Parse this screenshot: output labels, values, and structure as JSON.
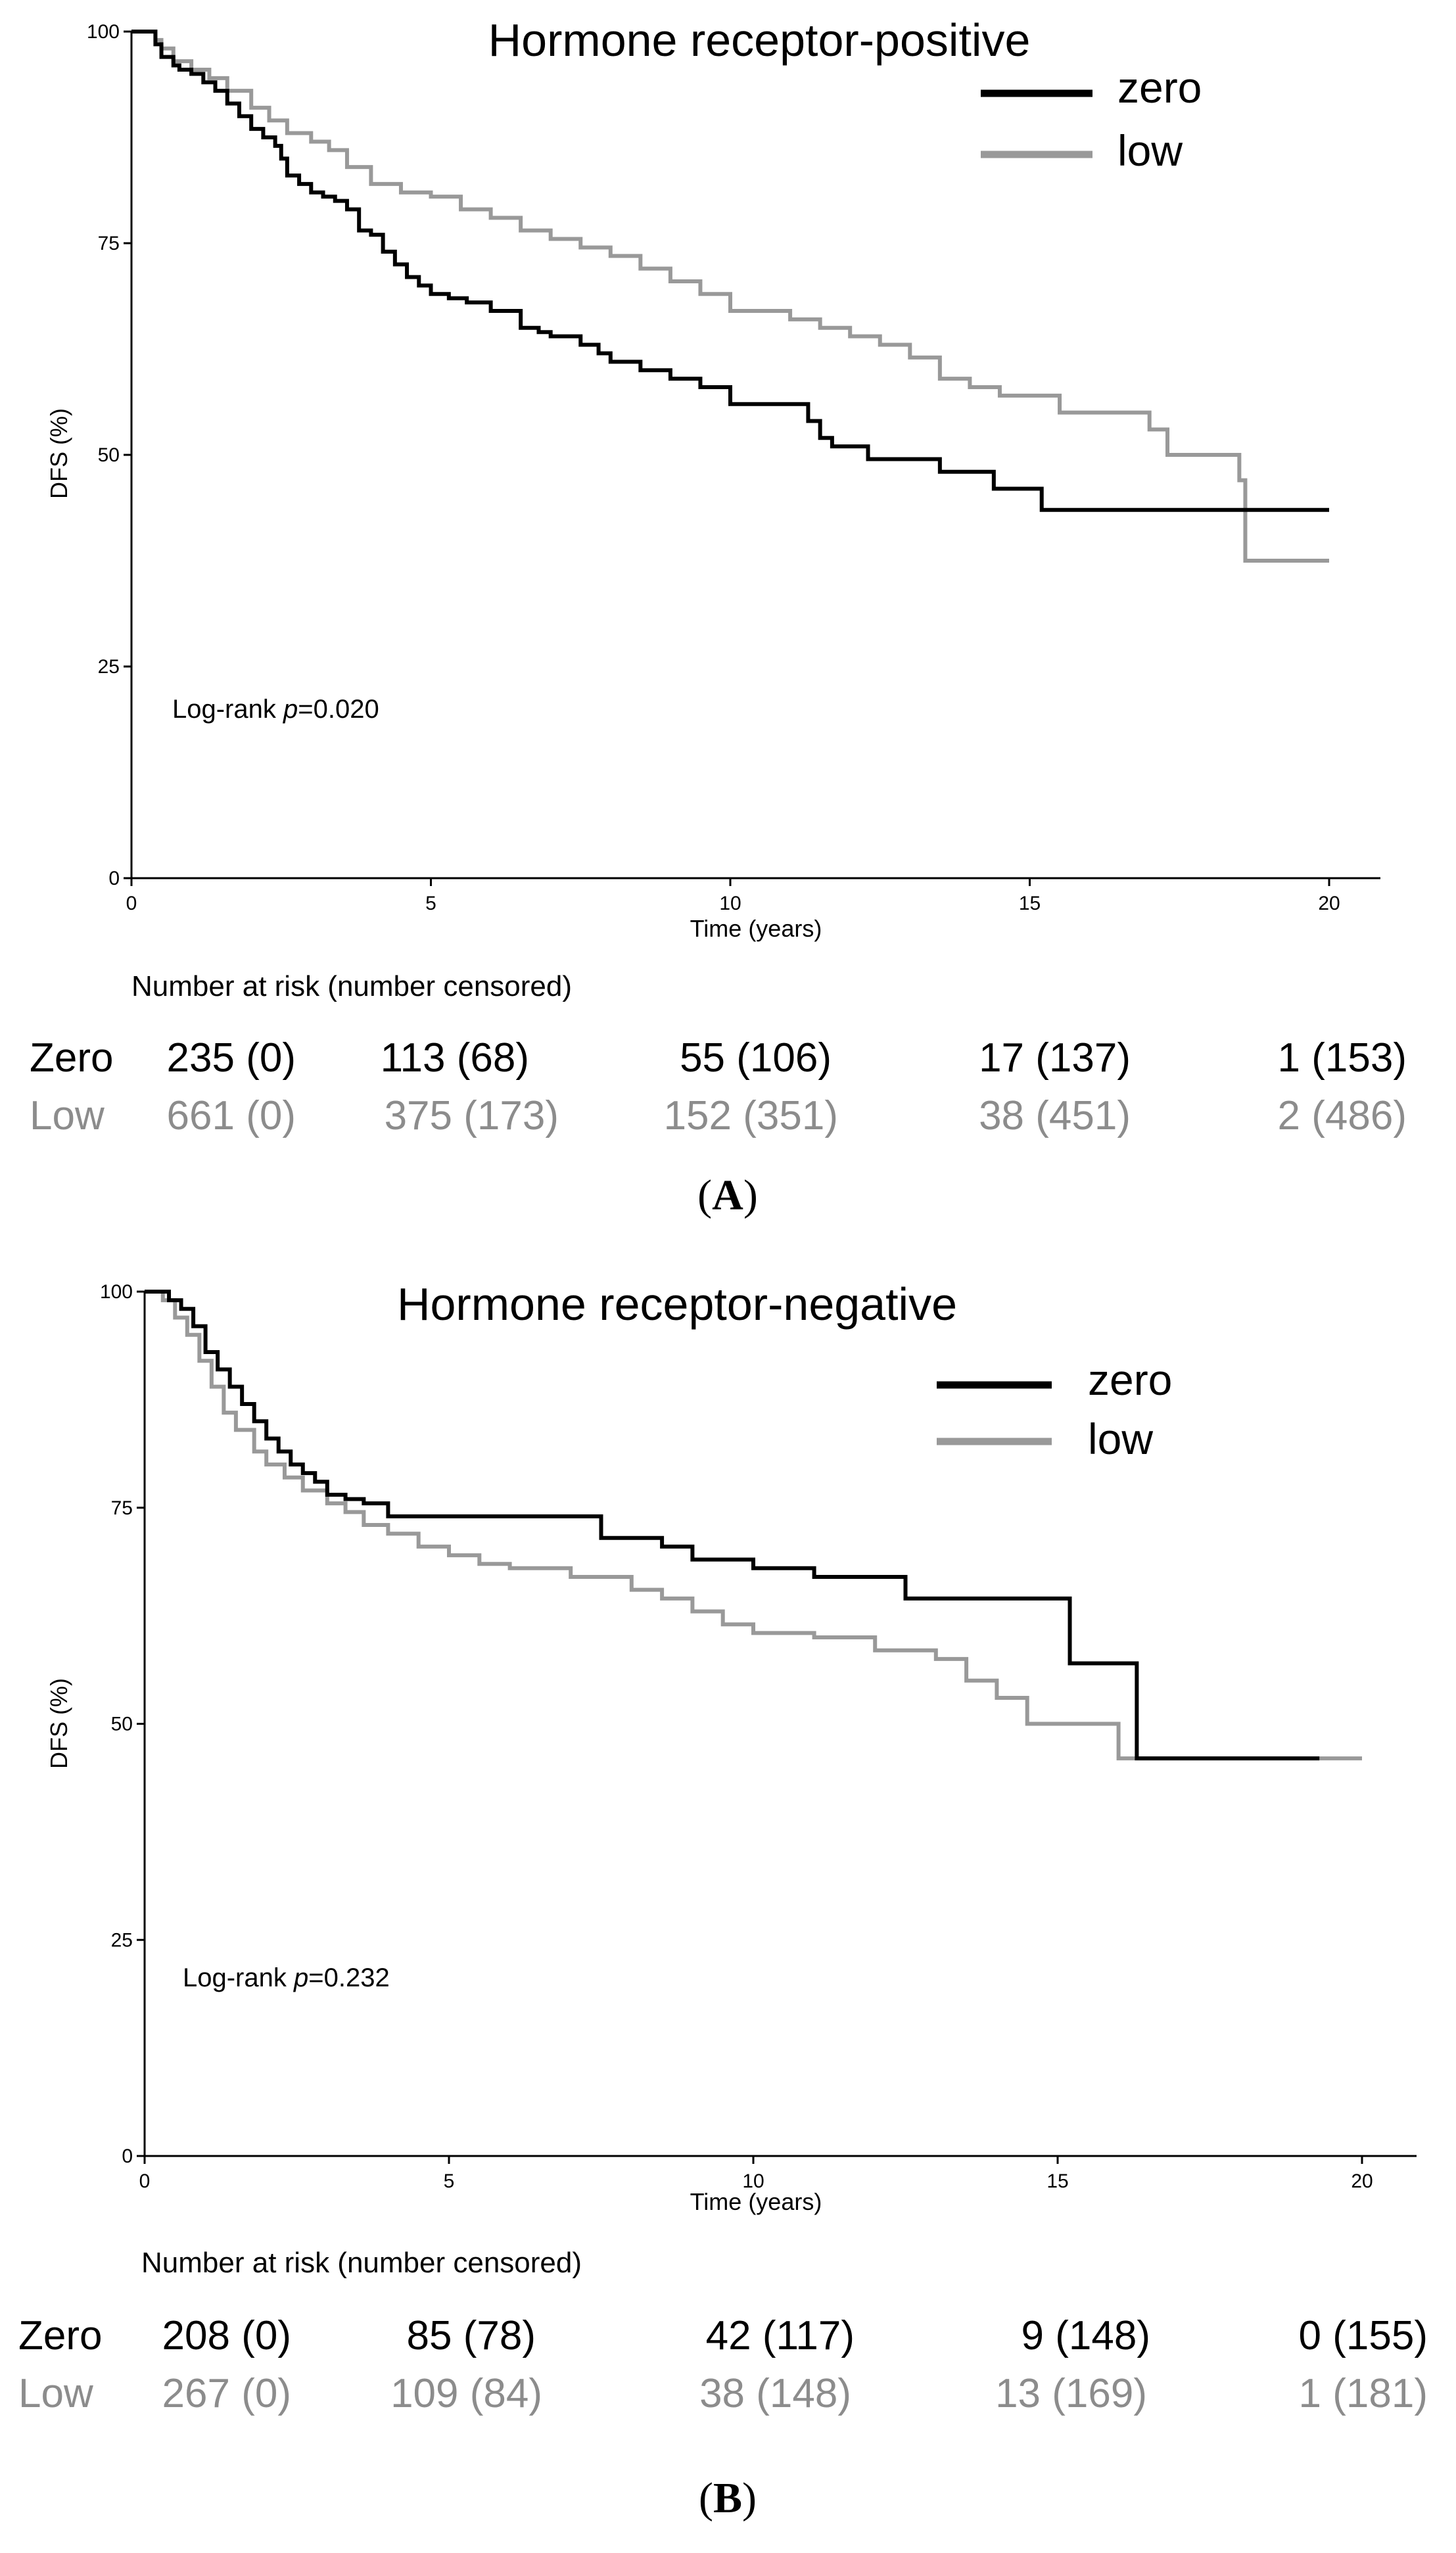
{
  "chart_data": [
    {
      "type": "line",
      "panel_label": "A",
      "title": "Hormone receptor-positive",
      "xlabel": "Time (years)",
      "ylabel": "DFS (%)",
      "xlim": [
        0,
        21
      ],
      "ylim": [
        0,
        100
      ],
      "x_ticks": [
        0,
        5,
        10,
        15,
        20
      ],
      "y_ticks": [
        0,
        25,
        50,
        75,
        100
      ],
      "legend_position": "top-right",
      "annotation": {
        "prefix": "Log-rank ",
        "p_symbol": "p",
        "value": "=0.020"
      },
      "colors": {
        "zero": "#000000",
        "low": "#999999"
      },
      "series": [
        {
          "key": "zero",
          "name": "zero",
          "x": [
            0,
            0.4,
            0.5,
            0.7,
            0.8,
            1.0,
            1.2,
            1.4,
            1.6,
            1.8,
            2.0,
            2.2,
            2.4,
            2.5,
            2.6,
            2.8,
            3.0,
            3.2,
            3.4,
            3.6,
            3.8,
            4.0,
            4.2,
            4.4,
            4.6,
            4.8,
            5.0,
            5.3,
            5.6,
            6.0,
            6.5,
            6.8,
            7.0,
            7.5,
            7.8,
            8.0,
            8.5,
            9.0,
            9.5,
            10.0,
            11.3,
            11.5,
            11.7,
            12.3,
            13.5,
            14.4,
            15.2,
            20.0
          ],
          "values": [
            100,
            98.5,
            97,
            96,
            95.5,
            95,
            94,
            93,
            91.5,
            90,
            88.5,
            87.5,
            86.5,
            85,
            83,
            82,
            81,
            80.5,
            80,
            79,
            76.5,
            76,
            74,
            72.5,
            71,
            70,
            69,
            68.5,
            68,
            67,
            65,
            64.5,
            64,
            63,
            62,
            61,
            60,
            59,
            58,
            56,
            54,
            52,
            51,
            49.5,
            48,
            46,
            43.5,
            43.5
          ]
        },
        {
          "key": "low",
          "name": "low",
          "x": [
            0,
            0.4,
            0.5,
            0.7,
            1.0,
            1.3,
            1.6,
            2.0,
            2.3,
            2.6,
            3.0,
            3.3,
            3.6,
            4.0,
            4.5,
            5.0,
            5.5,
            6.0,
            6.5,
            7.0,
            7.5,
            8.0,
            8.5,
            9.0,
            9.5,
            10.0,
            11.0,
            11.5,
            12.0,
            12.5,
            13.0,
            13.5,
            14.0,
            14.5,
            15.5,
            17.0,
            17.3,
            18.5,
            18.6,
            20.0
          ],
          "values": [
            100,
            99,
            98,
            96.5,
            95.5,
            94.5,
            93,
            91,
            89.5,
            88,
            87,
            86,
            84,
            82,
            81,
            80.5,
            79,
            78,
            76.5,
            75.5,
            74.5,
            73.5,
            72,
            70.5,
            69,
            67,
            66,
            65,
            64,
            63,
            61.5,
            59,
            58,
            57,
            55,
            53,
            50,
            47,
            37.5,
            37.5
          ]
        }
      ],
      "risk_table": {
        "title": "Number at risk (number censored)",
        "rows": [
          {
            "label": "Zero",
            "cells": [
              "235 (0)",
              "113 (68)",
              "55 (106)",
              "17 (137)",
              "1 (153)"
            ]
          },
          {
            "label": "Low",
            "cells": [
              "661 (0)",
              "375 (173)",
              "152 (351)",
              "38 (451)",
              "2 (486)"
            ]
          }
        ]
      }
    },
    {
      "type": "line",
      "panel_label": "B",
      "title": "Hormone receptor-negative",
      "xlabel": "Time (years)",
      "ylabel": "DFS (%)",
      "xlim": [
        0,
        21
      ],
      "ylim": [
        0,
        100
      ],
      "x_ticks": [
        0,
        5,
        10,
        15,
        20
      ],
      "y_ticks": [
        0,
        25,
        50,
        75,
        100
      ],
      "legend_position": "top-right",
      "annotation": {
        "prefix": "Log-rank ",
        "p_symbol": "p",
        "value": "=0.232"
      },
      "colors": {
        "zero": "#000000",
        "low": "#999999"
      },
      "series": [
        {
          "key": "zero",
          "name": "zero",
          "x": [
            0,
            0.4,
            0.6,
            0.8,
            1.0,
            1.2,
            1.4,
            1.6,
            1.8,
            2.0,
            2.2,
            2.4,
            2.6,
            2.8,
            3.0,
            3.3,
            3.6,
            4.0,
            7.0,
            7.5,
            8.5,
            9.0,
            10.0,
            11.0,
            12.5,
            15.2,
            16.3,
            16.4,
            19.3
          ],
          "values": [
            100,
            99,
            98,
            96,
            93,
            91,
            89,
            87,
            85,
            83,
            81.5,
            80,
            79,
            78,
            76.5,
            76,
            75.5,
            74,
            74,
            71.5,
            70.5,
            69,
            68,
            67,
            64.5,
            57,
            46,
            46,
            46
          ]
        },
        {
          "key": "low",
          "name": "low",
          "x": [
            0,
            0.3,
            0.5,
            0.7,
            0.9,
            1.1,
            1.3,
            1.5,
            1.8,
            2.0,
            2.3,
            2.6,
            3.0,
            3.3,
            3.6,
            4.0,
            4.5,
            5.0,
            5.5,
            6.0,
            7.0,
            8.0,
            8.5,
            9.0,
            9.5,
            10.0,
            11.0,
            12.0,
            13.0,
            13.5,
            14.0,
            14.5,
            15.0,
            16.0,
            16.2,
            20.0
          ],
          "values": [
            100,
            99,
            97,
            95,
            92,
            89,
            86,
            84,
            81.5,
            80,
            78.5,
            77,
            75.5,
            74.5,
            73,
            72,
            70.5,
            69.5,
            68.5,
            68,
            67,
            65.5,
            64.5,
            63,
            61.5,
            60.5,
            60,
            58.5,
            57.5,
            55,
            53,
            50,
            50,
            46,
            46,
            46
          ]
        }
      ],
      "risk_table": {
        "title": "Number at risk (number censored)",
        "rows": [
          {
            "label": "Zero",
            "cells": [
              "208 (0)",
              "85 (78)",
              "42 (117)",
              "9 (148)",
              "0 (155)"
            ]
          },
          {
            "label": "Low",
            "cells": [
              "267 (0)",
              "109 (84)",
              "38 (148)",
              "13 (169)",
              "1 (181)"
            ]
          }
        ]
      }
    }
  ]
}
